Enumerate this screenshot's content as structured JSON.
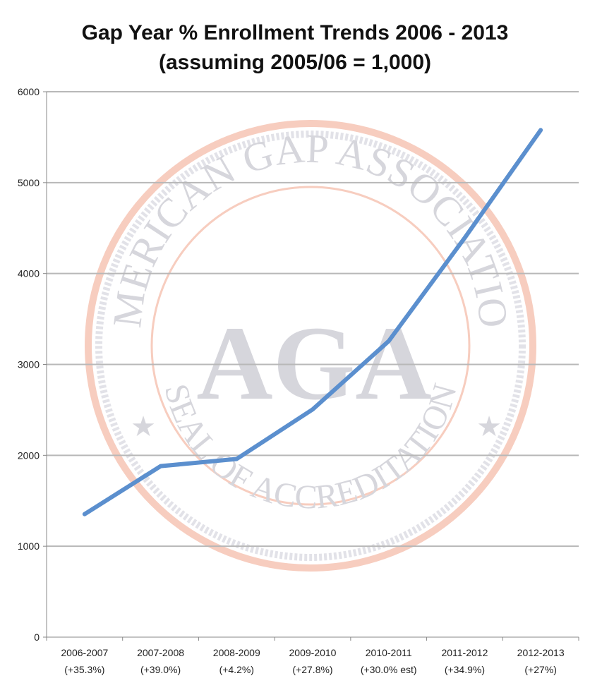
{
  "chart_data": {
    "type": "line",
    "title": "Gap Year % Enrollment Trends 2006 - 2013",
    "subtitle": "(assuming 2005/06 = 1,000)",
    "xlabel": "",
    "ylabel": "",
    "ylim": [
      0,
      6000
    ],
    "yticks": [
      "0",
      "1000",
      "2000",
      "3000",
      "4000",
      "5000",
      "6000"
    ],
    "categories": [
      "2006-2007",
      "2007-2008",
      "2008-2009",
      "2009-2010",
      "2010-2011",
      "2011-2012",
      "2012-2013"
    ],
    "category_notes": [
      "(+35.3%)",
      "(+39.0%)",
      "(+4.2%)",
      "(+27.8%)",
      "(+30.0% est)",
      "(+34.9%)",
      "(+27%)"
    ],
    "series": [
      {
        "values": [
          1353,
          1881,
          1960,
          2505,
          3256,
          4392,
          5578
        ],
        "color": "#5b8fce"
      }
    ],
    "grid": true,
    "legend": "none"
  },
  "watermark": {
    "top_text": "AMERICAN GAP ASSOCIATION",
    "bottom_text": "SEAL OF ACCREDITATION",
    "center_text": "AGA",
    "ring_color": "#f6c8b8",
    "text_color": "#d9d9df"
  }
}
